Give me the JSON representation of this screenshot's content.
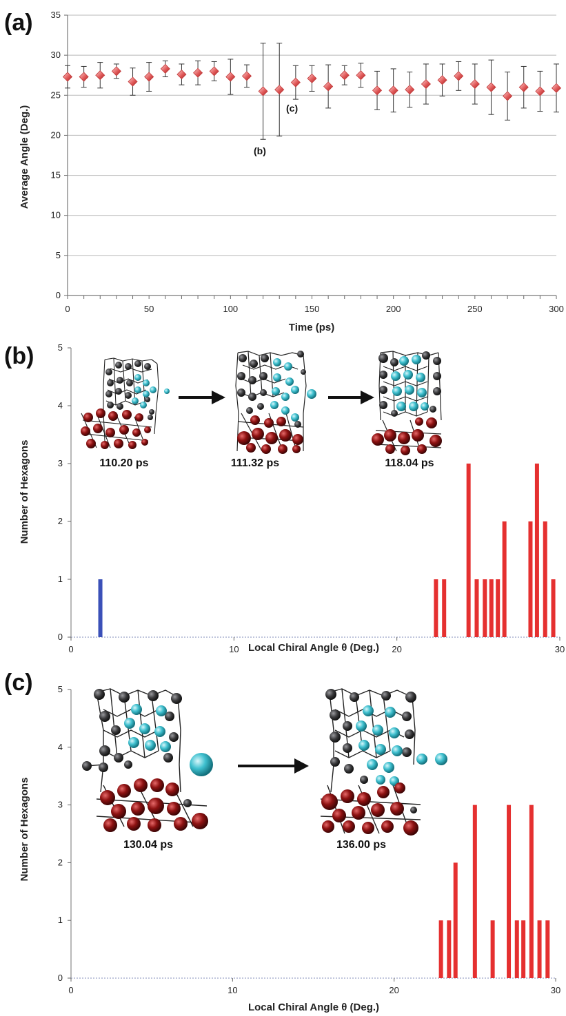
{
  "chart_data": [
    {
      "panel": "(a)",
      "type": "scatter",
      "xlabel": "Time (ps)",
      "ylabel": "Average Angle (Deg.)",
      "xlim": [
        0,
        300
      ],
      "ylim": [
        0,
        35
      ],
      "xticks": [
        0,
        50,
        100,
        150,
        200,
        250,
        300
      ],
      "yticks": [
        0,
        5,
        10,
        15,
        20,
        25,
        30,
        35
      ],
      "grid": "horizontal",
      "color": "#e25a5a",
      "x": [
        0,
        10,
        20,
        30,
        40,
        50,
        60,
        70,
        80,
        90,
        100,
        110,
        120,
        130,
        140,
        150,
        160,
        170,
        180,
        190,
        200,
        210,
        220,
        230,
        240,
        250,
        260,
        270,
        280,
        290,
        300
      ],
      "y": [
        27.3,
        27.3,
        27.5,
        28.0,
        26.7,
        27.3,
        28.3,
        27.6,
        27.8,
        28.0,
        27.3,
        27.4,
        25.5,
        25.7,
        26.6,
        27.1,
        26.1,
        27.5,
        27.5,
        25.6,
        25.6,
        25.7,
        26.4,
        26.9,
        27.4,
        26.4,
        26.0,
        24.9,
        26.0,
        25.5,
        25.9
      ],
      "err": [
        1.4,
        1.3,
        1.6,
        0.9,
        1.7,
        1.8,
        1.0,
        1.3,
        1.5,
        1.2,
        2.2,
        1.4,
        6.0,
        5.8,
        2.1,
        1.6,
        2.7,
        1.2,
        1.5,
        2.4,
        2.7,
        2.2,
        2.5,
        2.0,
        1.8,
        2.5,
        3.4,
        3.0,
        2.6,
        2.5,
        3.0
      ],
      "annotations": [
        {
          "text": "(b)",
          "x": 122,
          "y": 18.6
        },
        {
          "text": "(c)",
          "x": 139,
          "y": 23.6
        }
      ]
    },
    {
      "panel": "(b)",
      "type": "bar",
      "xlabel": "Local Chiral Angle θ (Deg.)",
      "ylabel": "Number of Hexagons",
      "xlim": [
        0,
        30
      ],
      "ylim": [
        0,
        5
      ],
      "xticks": [
        0,
        10,
        20,
        30
      ],
      "yticks": [
        0,
        1,
        2,
        3,
        4,
        5
      ],
      "bars": [
        {
          "x": 1.8,
          "value": 1,
          "color": "#3b50b8"
        },
        {
          "x": 22.4,
          "value": 1,
          "color": "#e53030"
        },
        {
          "x": 22.9,
          "value": 1,
          "color": "#e53030"
        },
        {
          "x": 24.4,
          "value": 3,
          "color": "#e53030"
        },
        {
          "x": 24.9,
          "value": 1,
          "color": "#e53030"
        },
        {
          "x": 25.4,
          "value": 1,
          "color": "#e53030"
        },
        {
          "x": 25.8,
          "value": 1,
          "color": "#e53030"
        },
        {
          "x": 26.2,
          "value": 1,
          "color": "#e53030"
        },
        {
          "x": 26.6,
          "value": 2,
          "color": "#e53030"
        },
        {
          "x": 28.2,
          "value": 2,
          "color": "#e53030"
        },
        {
          "x": 28.6,
          "value": 3,
          "color": "#e53030"
        },
        {
          "x": 29.1,
          "value": 2,
          "color": "#e53030"
        },
        {
          "x": 29.6,
          "value": 1,
          "color": "#e53030"
        }
      ],
      "snapshots": [
        "110.20 ps",
        "111.32 ps",
        "118.04 ps"
      ]
    },
    {
      "panel": "(c)",
      "type": "bar",
      "xlabel": "Local Chiral Angle θ (Deg.)",
      "ylabel": "Number of Hexagons",
      "xlim": [
        0,
        30
      ],
      "ylim": [
        0,
        5
      ],
      "xticks": [
        0,
        10,
        20,
        30
      ],
      "yticks": [
        0,
        1,
        2,
        3,
        4,
        5
      ],
      "bars": [
        {
          "x": 22.9,
          "value": 1,
          "color": "#e53030"
        },
        {
          "x": 23.4,
          "value": 1,
          "color": "#e53030"
        },
        {
          "x": 23.8,
          "value": 2,
          "color": "#e53030"
        },
        {
          "x": 25.0,
          "value": 3,
          "color": "#e53030"
        },
        {
          "x": 26.1,
          "value": 1,
          "color": "#e53030"
        },
        {
          "x": 27.1,
          "value": 3,
          "color": "#e53030"
        },
        {
          "x": 27.6,
          "value": 1,
          "color": "#e53030"
        },
        {
          "x": 28.0,
          "value": 1,
          "color": "#e53030"
        },
        {
          "x": 28.5,
          "value": 3,
          "color": "#e53030"
        },
        {
          "x": 29.0,
          "value": 1,
          "color": "#e53030"
        },
        {
          "x": 29.5,
          "value": 1,
          "color": "#e53030"
        }
      ],
      "snapshots": [
        "130.04 ps",
        "136.00 ps"
      ]
    }
  ],
  "atom_colors": {
    "carbon": "#3a3a3c",
    "growing": "#3fc0cf",
    "metal": "#8e1212",
    "bond": "#222222"
  }
}
